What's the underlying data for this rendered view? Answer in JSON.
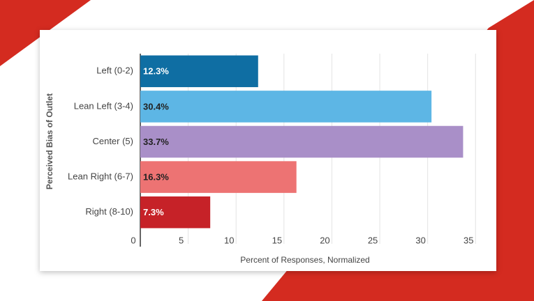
{
  "chart_data": {
    "type": "bar",
    "orientation": "horizontal",
    "x_label": "Percent of Responses, Normalized",
    "y_label": "Perceived Bias of Outlet",
    "categories": [
      "Left (0-2)",
      "Lean Left (3-4)",
      "Center (5)",
      "Lean Right (6-7)",
      "Right (8-10)"
    ],
    "values": [
      12.3,
      30.4,
      33.7,
      16.3,
      7.3
    ],
    "value_labels": [
      "12.3%",
      "30.4%",
      "33.7%",
      "16.3%",
      "7.3%"
    ],
    "colors": [
      "#0f6ea3",
      "#5db6e5",
      "#a98fc8",
      "#ed7373",
      "#c62228"
    ],
    "xlim": [
      0,
      36
    ],
    "xticks": [
      0,
      5,
      10,
      15,
      20,
      25,
      30,
      35
    ],
    "grid": true
  }
}
